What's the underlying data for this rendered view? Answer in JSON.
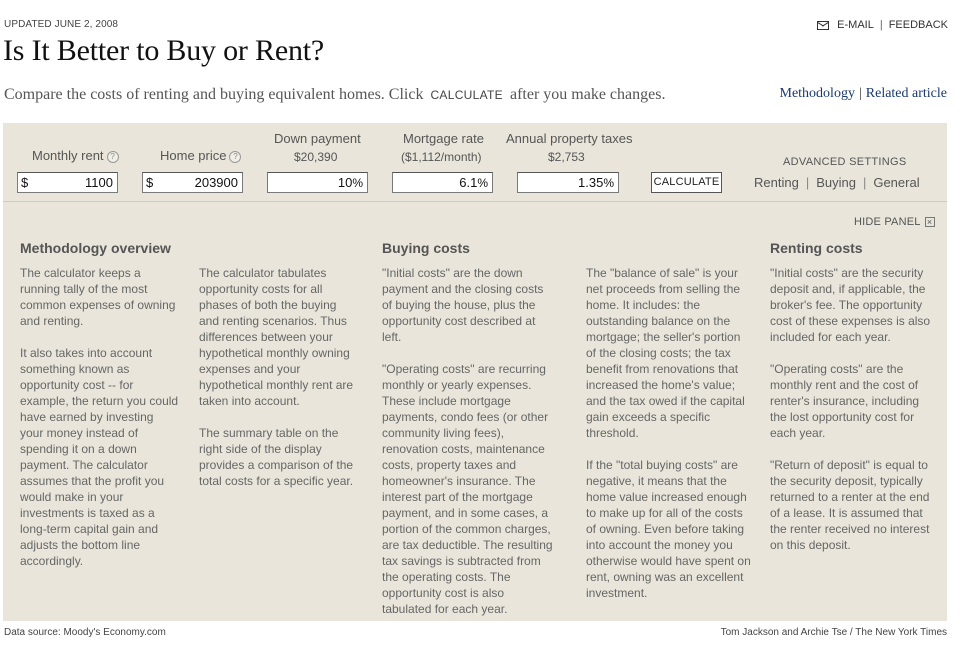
{
  "header": {
    "updated": "UPDATED JUNE 2, 2008",
    "email": "E-MAIL",
    "feedback": "FEEDBACK",
    "title": "Is It Better to Buy or Rent?",
    "subtitle_before": "Compare the costs of renting and buying equivalent homes. Click",
    "subtitle_calc": "CALCULATE",
    "subtitle_after": "after you make changes.",
    "methodology_link": "Methodology",
    "related_link": "Related article"
  },
  "inputs": {
    "monthly_rent": {
      "label": "Monthly rent",
      "currency": "$",
      "value": "1100"
    },
    "home_price": {
      "label": "Home price",
      "currency": "$",
      "value": "203900"
    },
    "down_payment": {
      "label": "Down payment",
      "sub": "$20,390",
      "value": "10",
      "unit": "%"
    },
    "mortgage_rate": {
      "label": "Mortgage rate",
      "sub": "($1,112/month)",
      "value": "6.1",
      "unit": "%"
    },
    "property_taxes": {
      "label": "Annual property taxes",
      "sub": "$2,753",
      "value": "1.35",
      "unit": "%"
    },
    "help_glyph": "?",
    "calculate_button": "CALCULATE"
  },
  "advanced": {
    "label": "ADVANCED SETTINGS",
    "links": [
      "Renting",
      "Buying",
      "General"
    ]
  },
  "panel": {
    "hide_label": "HIDE PANEL",
    "hide_icon": "close-box-icon",
    "hide_glyph": "×",
    "methodology": {
      "heading": "Methodology overview",
      "col1": [
        "The calculator keeps a running tally of the most common expenses of owning and renting.",
        "It also takes into account something known as opportunity cost -- for example, the return you could have earned by investing your money instead of spending it on a down payment. The calculator assumes that the profit you would make in your investments is taxed as a long-term capital gain and adjusts the bottom line accordingly."
      ],
      "col2": [
        "The calculator tabulates opportunity costs for all phases of both the buying and renting scenarios. Thus differences between your hypothetical monthly owning expenses and your hypothetical monthly rent are taken into account.",
        "The summary table on the right side of the display provides a comparison of the total costs for a specific year."
      ]
    },
    "buying": {
      "heading": "Buying costs",
      "col1": [
        "\"Initial costs\" are the down payment and the closing costs of buying the house, plus the opportunity cost described at left.",
        "\"Operating costs\" are recurring monthly or yearly expenses. These include mortgage payments, condo fees (or other community living fees), renovation costs, maintenance costs, property taxes and homeowner's insurance. The interest part of the mortgage payment, and in some cases, a portion of the common charges, are tax deductible. The resulting tax savings is subtracted from the operating costs. The opportunity cost is also tabulated for each year."
      ],
      "col2": [
        "The \"balance of sale\" is your net proceeds from selling the home. It includes: the outstanding balance on the mortgage; the seller's portion of the closing costs; the tax benefit from renovations that increased the home's value; and the tax owed if the capital gain exceeds a specific threshold.",
        "If the \"total buying costs\" are negative, it means that the home value increased enough to make up for all of the costs of owning. Even before taking into account the money you otherwise would have spent on rent, owning was an excellent investment."
      ]
    },
    "renting": {
      "heading": "Renting costs",
      "col1": [
        "\"Initial costs\" are the security deposit and, if applicable, the broker's fee. The opportunity cost of these expenses is also included for each year.",
        "\"Operating costs\" are the monthly rent and the cost of renter's insurance, including the lost opportunity cost for each year.",
        "\"Return of deposit\" is equal to the security deposit, typically returned to a renter at the end of a lease. It is assumed that the renter received no interest on this deposit."
      ]
    }
  },
  "footer": {
    "source": "Data source: Moody's Economy.com",
    "credit": "Tom Jackson and Archie Tse / The New York Times"
  }
}
